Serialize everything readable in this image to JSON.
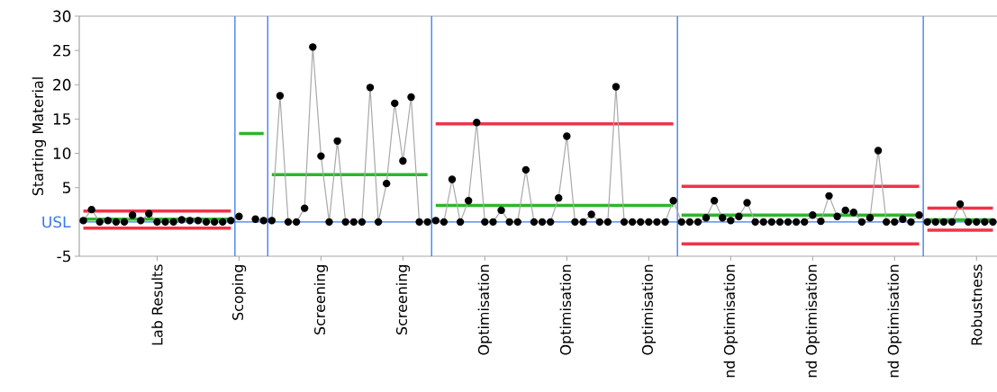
{
  "chart_data": {
    "type": "line",
    "ylabel": "Starting Material",
    "marker": "circle",
    "ylim": [
      -5,
      30
    ],
    "yticks": [
      -5,
      5,
      10,
      15,
      20,
      25,
      30
    ],
    "categories": [
      null,
      null,
      null,
      null,
      null,
      null,
      null,
      null,
      null,
      "Lab Results",
      null,
      null,
      null,
      null,
      null,
      null,
      null,
      null,
      null,
      "Scoping",
      null,
      null,
      null,
      null,
      null,
      null,
      null,
      null,
      null,
      "Screening",
      null,
      null,
      null,
      null,
      null,
      null,
      null,
      null,
      null,
      "Screening",
      null,
      null,
      null,
      null,
      null,
      null,
      null,
      null,
      null,
      "Optimisation",
      null,
      null,
      null,
      null,
      null,
      null,
      null,
      null,
      null,
      "Optimisation",
      null,
      null,
      null,
      null,
      null,
      null,
      null,
      null,
      null,
      "Optimisation",
      null,
      null,
      null,
      null,
      null,
      null,
      null,
      null,
      null,
      "nd Optimisation",
      null,
      null,
      null,
      null,
      null,
      null,
      null,
      null,
      null,
      "nd Optimisation",
      null,
      null,
      null,
      null,
      null,
      null,
      null,
      null,
      null,
      "nd Optimisation",
      null,
      null,
      null,
      null,
      null,
      null,
      null,
      null,
      null,
      "Robustness",
      null,
      null
    ],
    "ref_lines": [
      {
        "axis": "y",
        "value": 0,
        "label": "USL",
        "color": "#3a78f0"
      }
    ],
    "series": [
      {
        "color": "#2db52d",
        "marker": "none",
        "values": [
          0.4,
          0.4,
          0.4,
          0.4,
          0.4,
          0.4,
          0.4,
          0.4,
          0.4,
          0.4,
          0.4,
          0.4,
          0.4,
          0.4,
          0.4,
          0.4,
          0.4,
          0.4,
          0.4,
          12.9,
          12.9,
          12.9,
          12.9,
          6.9,
          6.9,
          6.9,
          6.9,
          6.9,
          6.9,
          6.9,
          6.9,
          6.9,
          6.9,
          6.9,
          6.9,
          6.9,
          6.9,
          6.9,
          6.9,
          6.9,
          6.9,
          6.9,
          6.9,
          2.4,
          2.4,
          2.4,
          2.4,
          2.4,
          2.4,
          2.4,
          2.4,
          2.4,
          2.4,
          2.4,
          2.4,
          2.4,
          2.4,
          2.4,
          2.4,
          2.4,
          2.4,
          2.4,
          2.4,
          2.4,
          2.4,
          2.4,
          2.4,
          2.4,
          2.4,
          2.4,
          2.4,
          2.4,
          2.4,
          1.0,
          1.0,
          1.0,
          1.0,
          1.0,
          1.0,
          1.0,
          1.0,
          1.0,
          1.0,
          1.0,
          1.0,
          1.0,
          1.0,
          1.0,
          1.0,
          1.0,
          1.0,
          1.0,
          1.0,
          1.0,
          1.0,
          1.0,
          1.0,
          1.0,
          1.0,
          1.0,
          1.0,
          1.0,
          1.0,
          0.3,
          0.3,
          0.3,
          0.3,
          0.3,
          0.3,
          0.3,
          0.3,
          0.3
        ]
      },
      {
        "color": "#f03348",
        "marker": "none",
        "values": [
          1.6,
          1.6,
          1.6,
          1.6,
          1.6,
          1.6,
          1.6,
          1.6,
          1.6,
          1.6,
          1.6,
          1.6,
          1.6,
          1.6,
          1.6,
          1.6,
          1.6,
          1.6,
          1.6,
          null,
          null,
          null,
          null,
          null,
          null,
          null,
          null,
          null,
          null,
          null,
          null,
          null,
          null,
          null,
          null,
          null,
          null,
          null,
          null,
          null,
          null,
          null,
          null,
          14.3,
          14.3,
          14.3,
          14.3,
          14.3,
          14.3,
          14.3,
          14.3,
          14.3,
          14.3,
          14.3,
          14.3,
          14.3,
          14.3,
          14.3,
          14.3,
          14.3,
          14.3,
          14.3,
          14.3,
          14.3,
          14.3,
          14.3,
          14.3,
          14.3,
          14.3,
          14.3,
          14.3,
          14.3,
          14.3,
          5.2,
          5.2,
          5.2,
          5.2,
          5.2,
          5.2,
          5.2,
          5.2,
          5.2,
          5.2,
          5.2,
          5.2,
          5.2,
          5.2,
          5.2,
          5.2,
          5.2,
          5.2,
          5.2,
          5.2,
          5.2,
          5.2,
          5.2,
          5.2,
          5.2,
          5.2,
          5.2,
          5.2,
          5.2,
          5.2,
          2.0,
          2.0,
          2.0,
          2.0,
          2.0,
          2.0,
          2.0,
          2.0,
          2.0
        ]
      },
      {
        "color": "#f03348",
        "marker": "none",
        "values": [
          -0.9,
          -0.9,
          -0.9,
          -0.9,
          -0.9,
          -0.9,
          -0.9,
          -0.9,
          -0.9,
          -0.9,
          -0.9,
          -0.9,
          -0.9,
          -0.9,
          -0.9,
          -0.9,
          -0.9,
          -0.9,
          -0.9,
          null,
          null,
          null,
          null,
          null,
          null,
          null,
          null,
          null,
          null,
          null,
          null,
          null,
          null,
          null,
          null,
          null,
          null,
          null,
          null,
          null,
          null,
          null,
          null,
          null,
          null,
          null,
          null,
          null,
          null,
          null,
          null,
          null,
          null,
          null,
          null,
          null,
          null,
          null,
          null,
          null,
          null,
          null,
          null,
          null,
          null,
          null,
          null,
          null,
          null,
          null,
          null,
          null,
          null,
          -3.2,
          -3.2,
          -3.2,
          -3.2,
          -3.2,
          -3.2,
          -3.2,
          -3.2,
          -3.2,
          -3.2,
          -3.2,
          -3.2,
          -3.2,
          -3.2,
          -3.2,
          -3.2,
          -3.2,
          -3.2,
          -3.2,
          -3.2,
          -3.2,
          -3.2,
          -3.2,
          -3.2,
          -3.2,
          -3.2,
          -3.2,
          -3.2,
          -3.2,
          -3.2,
          -1.2,
          -1.2,
          -1.2,
          -1.2,
          -1.2,
          -1.2,
          -1.2,
          -1.2,
          -1.2
        ]
      },
      {
        "color": "#a9a9a9",
        "values": [
          0.2,
          1.8,
          0,
          0.2,
          0,
          0,
          1.0,
          0.2,
          1.2,
          0,
          0,
          0,
          0.3,
          0.2,
          0.2,
          0,
          0,
          0,
          0.2,
          0.8,
          null,
          0.4,
          0.2,
          0.2,
          18.4,
          0,
          0,
          2.0,
          25.5,
          9.6,
          0,
          11.8,
          0,
          0,
          0,
          19.6,
          0,
          5.6,
          17.3,
          8.9,
          18.2,
          0,
          0,
          0.2,
          0,
          6.2,
          0,
          3.1,
          14.5,
          0,
          0,
          1.7,
          0,
          0,
          7.6,
          0,
          0,
          0,
          3.5,
          12.5,
          0,
          0,
          1.1,
          0,
          0,
          19.7,
          0,
          0,
          0,
          0,
          0,
          0,
          3.1,
          0,
          0,
          0,
          0.6,
          3.1,
          0.6,
          0.2,
          0.8,
          2.8,
          0,
          0,
          0,
          0,
          0,
          0,
          0,
          1.0,
          0.1,
          3.8,
          0.8,
          1.7,
          1.4,
          0,
          0.6,
          10.4,
          0,
          0,
          0.4,
          0,
          1.0,
          0,
          0,
          0,
          0,
          2.6,
          0,
          0,
          0,
          0
        ]
      }
    ]
  }
}
